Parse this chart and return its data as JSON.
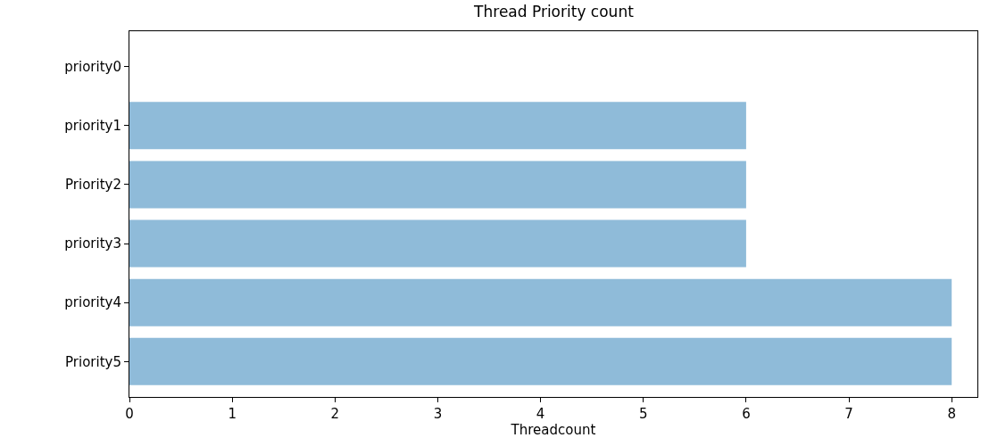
{
  "chart_data": {
    "type": "bar",
    "orientation": "horizontal",
    "title": "Thread Priority count",
    "xlabel": "Threadcount",
    "categories": [
      "priority0",
      "priority1",
      "Priority2",
      "priority3",
      "priority4",
      "Priority5"
    ],
    "values": [
      0,
      6,
      6,
      6,
      8,
      8
    ],
    "color": "#8fbbd9",
    "xlim": [
      0,
      8.25
    ],
    "xticks": [
      0,
      1,
      2,
      3,
      4,
      5,
      6,
      7,
      8
    ],
    "grid": false
  }
}
